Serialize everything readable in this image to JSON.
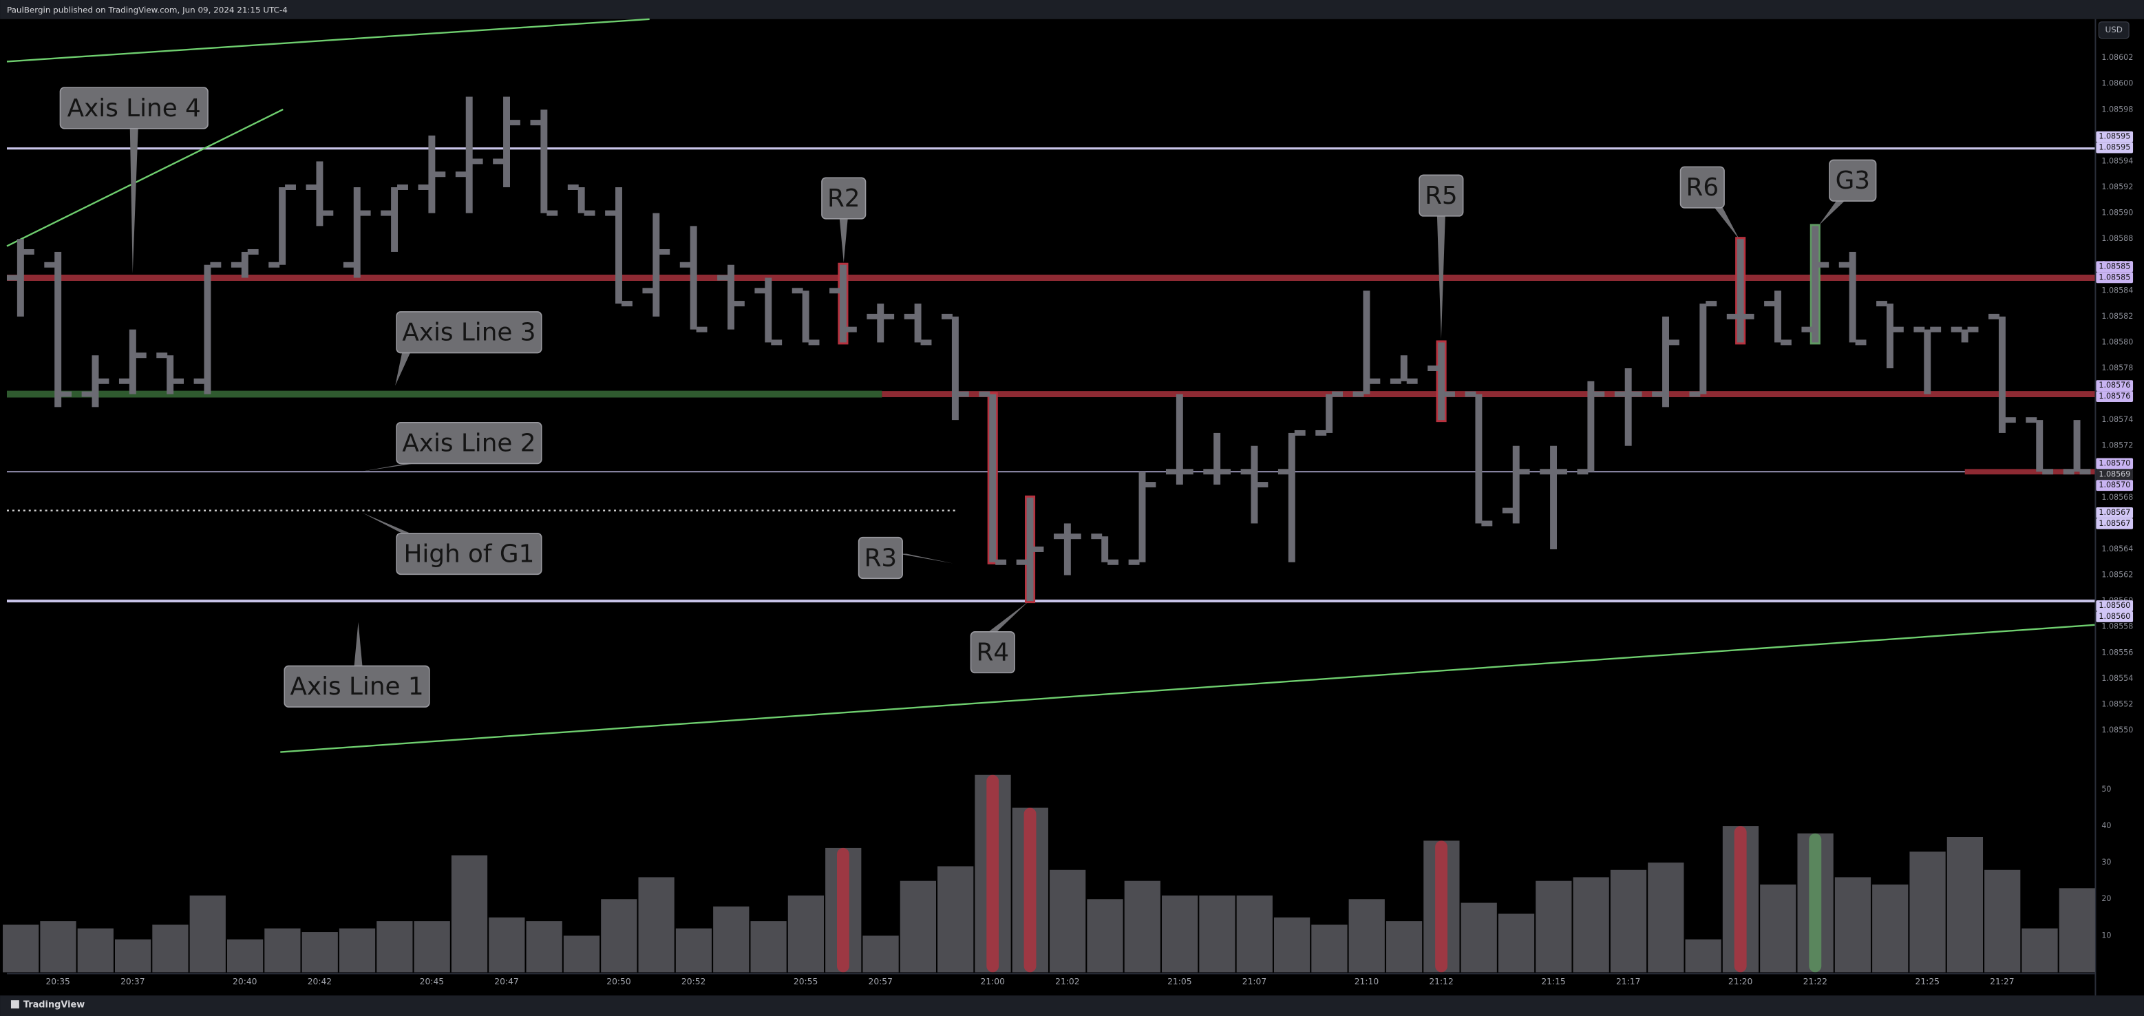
{
  "chart_data": {
    "type": "ohlc",
    "header": "PaulBergin published on TradingView.com, Jun 09, 2024 21:15 UTC-4",
    "footer": "TradingView",
    "currency": "USD",
    "categories": [
      null,
      "20:35",
      null,
      "20:37",
      null,
      null,
      "20:40",
      null,
      "20:42",
      null,
      null,
      "20:45",
      null,
      "20:47",
      null,
      null,
      "20:50",
      null,
      "20:52",
      null,
      null,
      "20:55",
      null,
      "20:57",
      null,
      null,
      "21:00",
      null,
      "21:02",
      null,
      null,
      "21:05",
      null,
      "21:07",
      null,
      null,
      "21:10",
      null,
      "21:12",
      null,
      null,
      "21:15",
      null,
      "21:17",
      null,
      null,
      "21:20",
      null,
      "21:22",
      null,
      null,
      "21:25",
      null,
      "21:27",
      null,
      null
    ],
    "open": [
      1.08585,
      1.08586,
      1.08576,
      1.08577,
      1.08579,
      1.08577,
      1.08586,
      1.08586,
      1.08592,
      1.08586,
      1.0859,
      1.08592,
      1.08593,
      1.08594,
      1.08597,
      1.08592,
      1.0859,
      1.08584,
      1.08586,
      1.08585,
      1.08584,
      1.08584,
      1.08584,
      1.08582,
      1.08582,
      1.08582,
      1.08576,
      1.08563,
      1.08565,
      1.08565,
      1.08563,
      1.0857,
      1.0857,
      1.0857,
      1.0857,
      1.08573,
      1.08576,
      1.08577,
      1.08578,
      1.08576,
      1.08567,
      1.0857,
      1.0857,
      1.08576,
      1.08576,
      1.08576,
      1.08582,
      1.08583,
      1.08581,
      1.08586,
      1.08583,
      1.08581,
      1.08581,
      1.08582,
      1.08574,
      1.0857
    ],
    "high": [
      1.08588,
      1.08587,
      1.08579,
      1.08581,
      1.08579,
      1.08586,
      1.08587,
      1.08592,
      1.08594,
      1.08592,
      1.08592,
      1.08596,
      1.08599,
      1.08599,
      1.08598,
      1.08592,
      1.08592,
      1.0859,
      1.08589,
      1.08586,
      1.08585,
      1.08584,
      1.08586,
      1.08583,
      1.08583,
      1.08582,
      1.08576,
      1.08568,
      1.08566,
      1.08565,
      1.0857,
      1.08576,
      1.08573,
      1.08572,
      1.08573,
      1.08576,
      1.08584,
      1.08579,
      1.0858,
      1.08576,
      1.08572,
      1.08572,
      1.08577,
      1.08578,
      1.08582,
      1.08583,
      1.08588,
      1.08584,
      1.08589,
      1.08587,
      1.08583,
      1.08581,
      1.08581,
      1.08582,
      1.08574,
      1.08574
    ],
    "low": [
      1.08582,
      1.08575,
      1.08575,
      1.08576,
      1.08576,
      1.08576,
      1.08585,
      1.08586,
      1.08589,
      1.08585,
      1.08587,
      1.0859,
      1.0859,
      1.08592,
      1.0859,
      1.0859,
      1.08583,
      1.08582,
      1.08581,
      1.08581,
      1.0858,
      1.0858,
      1.0858,
      1.0858,
      1.0858,
      1.08574,
      1.08563,
      1.0856,
      1.08562,
      1.08563,
      1.08563,
      1.08569,
      1.08569,
      1.08566,
      1.08563,
      1.08573,
      1.08576,
      1.08577,
      1.08574,
      1.08566,
      1.08566,
      1.08564,
      1.0857,
      1.08572,
      1.08575,
      1.08576,
      1.0858,
      1.0858,
      1.0858,
      1.0858,
      1.08578,
      1.08576,
      1.0858,
      1.08573,
      1.0857,
      1.0857
    ],
    "close": [
      1.08587,
      1.08576,
      1.08577,
      1.08579,
      1.08577,
      1.08586,
      1.08587,
      1.08592,
      1.0859,
      1.0859,
      1.08592,
      1.08593,
      1.08594,
      1.08597,
      1.0859,
      1.0859,
      1.08583,
      1.08587,
      1.08581,
      1.08583,
      1.0858,
      1.0858,
      1.08581,
      1.08582,
      1.0858,
      1.08576,
      1.08563,
      1.08564,
      1.08565,
      1.08563,
      1.08569,
      1.0857,
      1.0857,
      1.08569,
      1.08573,
      1.08576,
      1.08577,
      1.08577,
      1.08576,
      1.08566,
      1.0857,
      1.0857,
      1.08576,
      1.08576,
      1.0858,
      1.08583,
      1.08582,
      1.0858,
      1.08586,
      1.0858,
      1.08581,
      1.08581,
      1.08581,
      1.08574,
      1.0857,
      1.0857
    ],
    "color": "#6b6b73",
    "highlight_colors": [
      null,
      null,
      null,
      null,
      null,
      null,
      null,
      null,
      null,
      null,
      null,
      null,
      null,
      null,
      null,
      null,
      null,
      null,
      null,
      null,
      null,
      null,
      "#b8323f",
      null,
      null,
      null,
      "#b8323f",
      "#b8323f",
      null,
      null,
      null,
      null,
      null,
      null,
      null,
      null,
      null,
      null,
      "#b8323f",
      null,
      null,
      null,
      null,
      null,
      null,
      null,
      "#b8323f",
      null,
      "#5f9a62",
      null,
      null,
      null,
      null,
      null,
      null,
      null
    ],
    "ylim": [
      1.08548,
      1.08605
    ],
    "yticks": [
      {
        "value": 1.08602,
        "label": "1.08602"
      },
      {
        "value": 1.086,
        "label": "1.08600"
      },
      {
        "value": 1.08598,
        "label": "1.08598"
      },
      {
        "value": 1.08596,
        "label": "1.08596"
      },
      {
        "value": 1.08594,
        "label": "1.08594"
      },
      {
        "value": 1.08592,
        "label": "1.08592"
      },
      {
        "value": 1.0859,
        "label": "1.08590"
      },
      {
        "value": 1.08588,
        "label": "1.08588"
      },
      {
        "value": 1.08586,
        "label": "1.08586"
      },
      {
        "value": 1.08584,
        "label": "1.08584"
      },
      {
        "value": 1.08582,
        "label": "1.08582"
      },
      {
        "value": 1.0858,
        "label": "1.08580"
      },
      {
        "value": 1.08578,
        "label": "1.08578"
      },
      {
        "value": 1.08576,
        "label": "1.08576"
      },
      {
        "value": 1.08574,
        "label": "1.08574"
      },
      {
        "value": 1.08572,
        "label": "1.08572"
      },
      {
        "value": 1.0857,
        "label": "1.08570"
      },
      {
        "value": 1.08568,
        "label": "1.08568"
      },
      {
        "value": 1.08566,
        "label": "1.08566"
      },
      {
        "value": 1.08564,
        "label": "1.08564"
      },
      {
        "value": 1.08562,
        "label": "1.08562"
      },
      {
        "value": 1.0856,
        "label": "1.08560"
      },
      {
        "value": 1.08558,
        "label": "1.08558"
      },
      {
        "value": 1.08556,
        "label": "1.08556"
      },
      {
        "value": 1.08554,
        "label": "1.08554"
      },
      {
        "value": 1.08552,
        "label": "1.08552"
      },
      {
        "value": 1.0855,
        "label": "1.08550"
      }
    ],
    "volume": {
      "values": [
        13,
        14,
        12,
        9,
        13,
        21,
        9,
        12,
        11,
        12,
        14,
        14,
        32,
        15,
        14,
        10,
        20,
        26,
        12,
        18,
        14,
        21,
        34,
        10,
        25,
        29,
        54,
        45,
        28,
        20,
        25,
        21,
        21,
        21,
        15,
        13,
        20,
        14,
        36,
        19,
        16,
        25,
        26,
        28,
        30,
        9,
        40,
        24,
        38,
        26,
        24,
        33,
        37,
        28,
        12,
        23
      ],
      "color": "#4d4d52",
      "ylim": [
        0,
        58
      ],
      "yticks": [
        10,
        20,
        30,
        40,
        50
      ]
    },
    "levels": [
      {
        "value": 1.08595,
        "color": "#c9c5ea"
      },
      {
        "value": 1.08585,
        "color": "#8e2a33"
      },
      {
        "value": 1.08576,
        "color": "#2f5a2f"
      },
      {
        "value": 1.08576,
        "color": "#8e2a33"
      },
      {
        "value": 1.0857,
        "color": "#9a96b8"
      },
      {
        "value": 1.0857,
        "color": "#8e2a33"
      },
      {
        "value": 1.08567,
        "color": "#d0d0d0"
      },
      {
        "value": 1.0856,
        "color": "#c9c5ea"
      }
    ],
    "price_labels": [
      {
        "value": 1.08595,
        "label": "1.08595",
        "background": "#d1c6f5"
      },
      {
        "value": 1.08595,
        "label": "1.08595",
        "background": "#d1c6f5"
      },
      {
        "value": 1.08585,
        "label": "1.08585",
        "background": "#c9b4f2"
      },
      {
        "value": 1.08585,
        "label": "1.08585",
        "background": "#c9b4f2"
      },
      {
        "value": 1.08576,
        "label": "1.08576",
        "background": "#c9b4f2"
      },
      {
        "value": 1.08576,
        "label": "1.08576",
        "background": "#c9b4f2"
      },
      {
        "value": 1.0857,
        "label": "1.08570",
        "background": "#c9b4f2"
      },
      {
        "value": 1.08569,
        "label": "1.08569",
        "background": "#2a2a30"
      },
      {
        "value": 1.0857,
        "label": "1.08570",
        "background": "#c9b4f2"
      },
      {
        "value": 1.08567,
        "label": "1.08567",
        "background": "#d1c6f5"
      },
      {
        "value": 1.08567,
        "label": "1.08567",
        "background": "#d1c6f5"
      },
      {
        "value": 1.0856,
        "label": "1.08560",
        "background": "#d1c6f5"
      },
      {
        "value": 1.0856,
        "label": "1.08560",
        "background": "#d1c6f5"
      }
    ],
    "annotations": [
      "Axis Line 4",
      "Axis Line 3",
      "Axis Line 2",
      "High of G1",
      "Axis Line 1",
      "R2",
      "R3",
      "R4",
      "R5",
      "R6",
      "G3"
    ]
  }
}
